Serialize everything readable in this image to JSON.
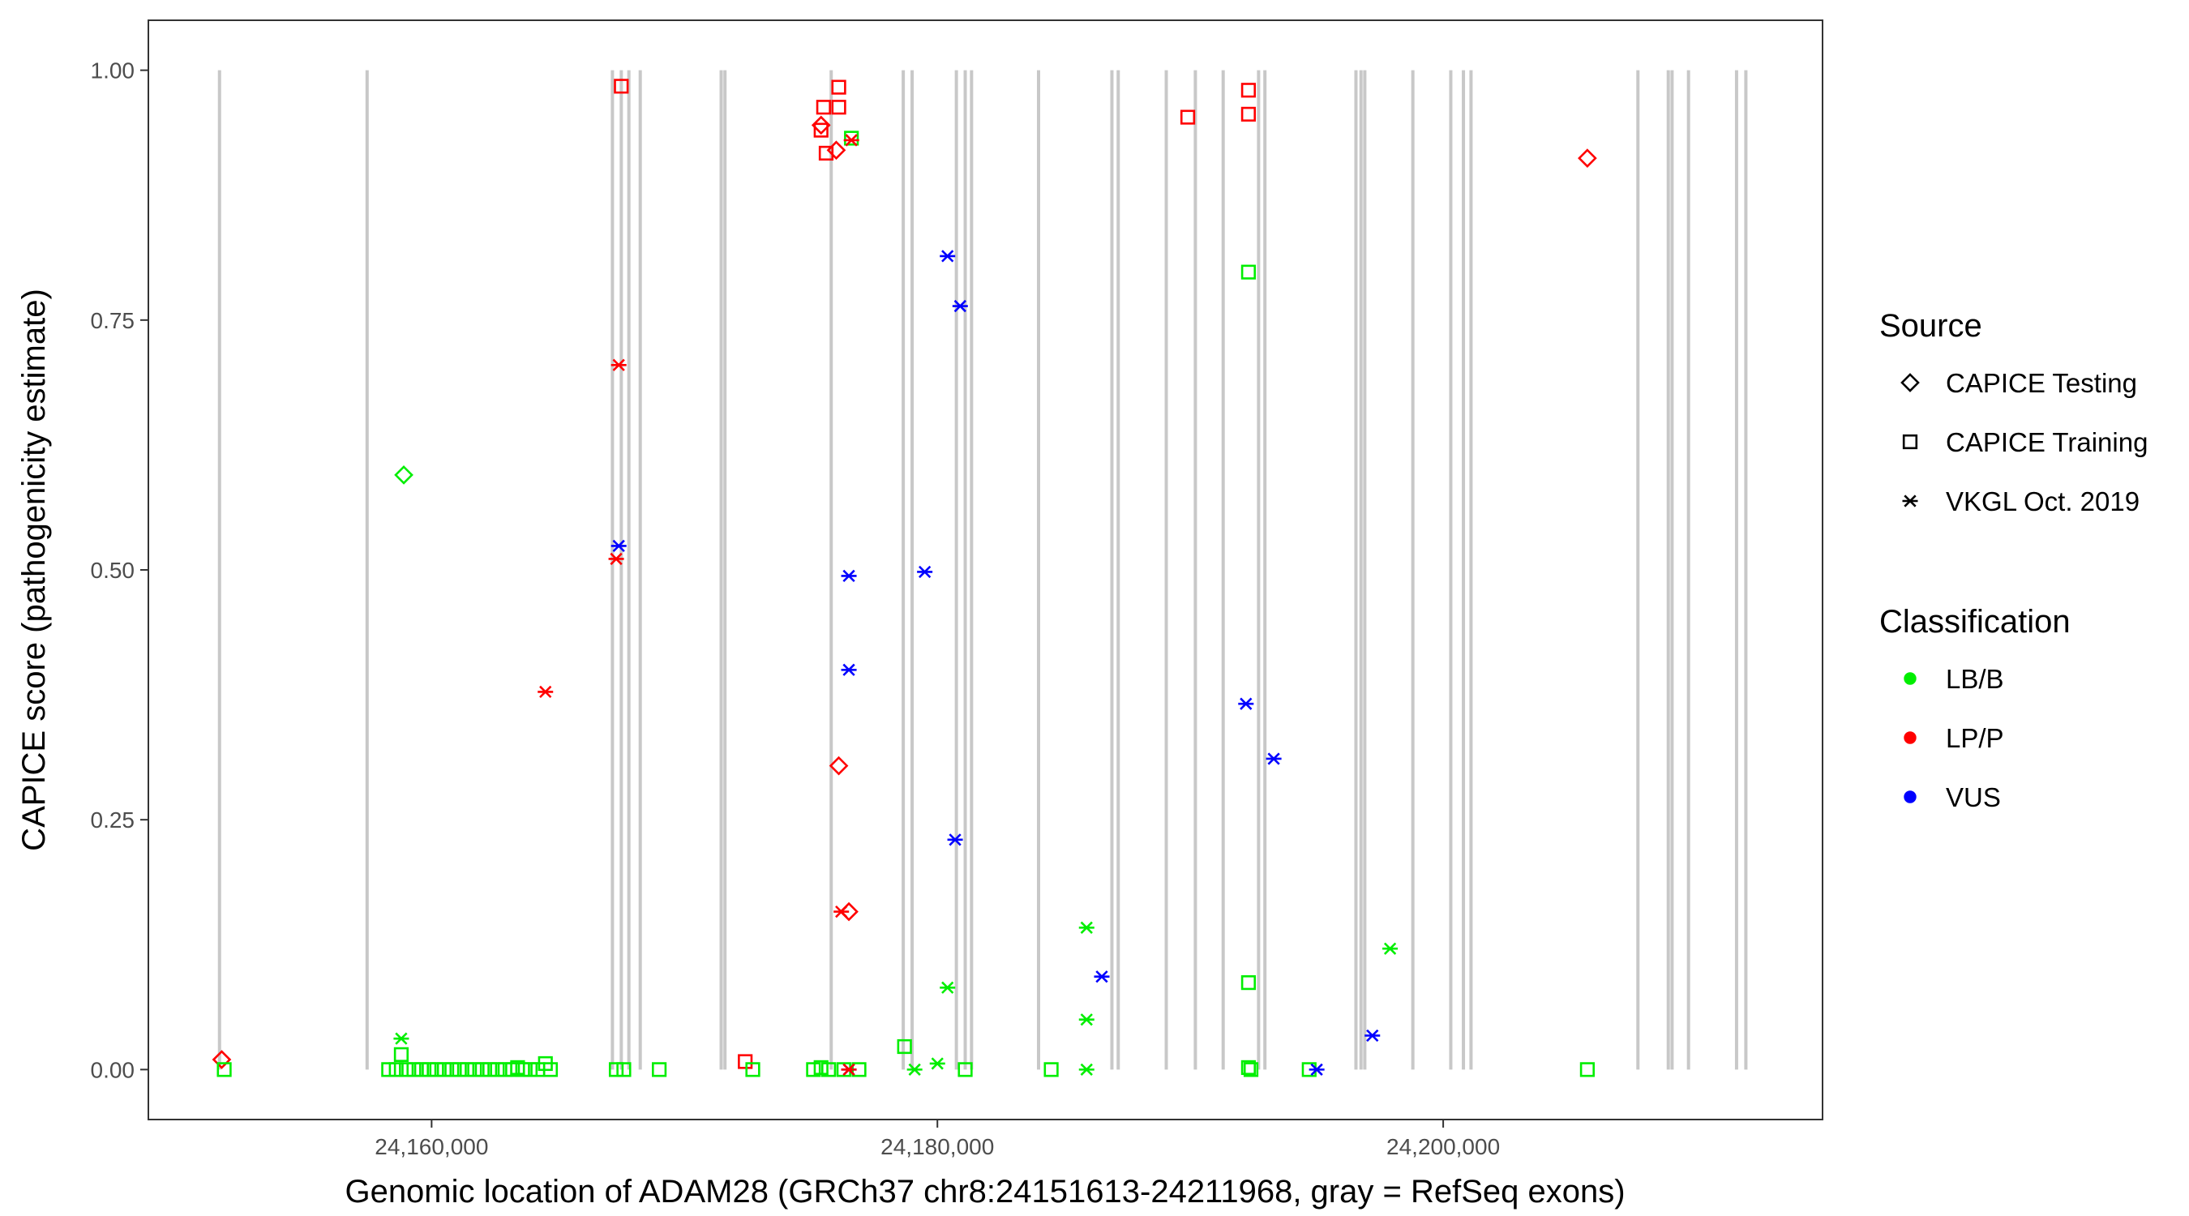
{
  "chart_data": {
    "type": "scatter",
    "xlabel": "Genomic location of ADAM28 (GRCh37 chr8:24151613-24211968, gray = RefSeq exons)",
    "ylabel": "CAPICE score (pathogenicity estimate)",
    "xlim": [
      24148800,
      24215000
    ],
    "ylim": [
      -0.05,
      1.05
    ],
    "xticks": [
      24160000,
      24180000,
      24200000
    ],
    "xtick_labels": [
      "24,160,000",
      "24,180,000",
      "24,200,000"
    ],
    "yticks": [
      0.0,
      0.25,
      0.5,
      0.75,
      1.0
    ],
    "ytick_labels": [
      "0.00",
      "0.25",
      "0.50",
      "0.75",
      "1.00"
    ],
    "grid": false,
    "legend_position": "right",
    "exons": [
      24151613,
      24157450,
      24167150,
      24167500,
      24167800,
      24168250,
      24171450,
      24171600,
      24175800,
      24178650,
      24179000,
      24180750,
      24181100,
      24181350,
      24184000,
      24186900,
      24187150,
      24189050,
      24190200,
      24191300,
      24192700,
      24192950,
      24196550,
      24196750,
      24196900,
      24198800,
      24200300,
      24200800,
      24201100,
      24207700,
      24208900,
      24209050,
      24209700,
      24211600,
      24211968
    ],
    "legends": [
      {
        "title": "Source",
        "entries": [
          {
            "label": "CAPICE Testing",
            "shape": "diamond"
          },
          {
            "label": "CAPICE Training",
            "shape": "square"
          },
          {
            "label": "VKGL Oct. 2019",
            "shape": "asterisk"
          }
        ]
      },
      {
        "title": "Classification",
        "entries": [
          {
            "label": "LB/B",
            "color": "#00ee00"
          },
          {
            "label": "LP/P",
            "color": "#ff0000"
          },
          {
            "label": "VUS",
            "color": "#0000ff"
          }
        ]
      }
    ],
    "colors": {
      "LB/B": "#00ee00",
      "LP/P": "#ff0000",
      "VUS": "#0000ff"
    },
    "series": [
      {
        "source": "CAPICE Testing",
        "points": [
          {
            "x": 24151700,
            "y": 0.01,
            "class": "LP/P"
          },
          {
            "x": 24158900,
            "y": 0.595,
            "class": "LB/B"
          },
          {
            "x": 24175400,
            "y": 0.945,
            "class": "LP/P"
          },
          {
            "x": 24176000,
            "y": 0.92,
            "class": "LP/P"
          },
          {
            "x": 24176100,
            "y": 0.304,
            "class": "LP/P"
          },
          {
            "x": 24176500,
            "y": 0.158,
            "class": "LP/P"
          },
          {
            "x": 24205700,
            "y": 0.912,
            "class": "LP/P"
          }
        ]
      },
      {
        "source": "CAPICE Training",
        "points": [
          {
            "x": 24151800,
            "y": 0.0,
            "class": "LB/B"
          },
          {
            "x": 24158300,
            "y": 0.0,
            "class": "LB/B"
          },
          {
            "x": 24158600,
            "y": 0.0,
            "class": "LB/B"
          },
          {
            "x": 24158800,
            "y": 0.015,
            "class": "LB/B"
          },
          {
            "x": 24159000,
            "y": 0.0,
            "class": "LB/B"
          },
          {
            "x": 24159300,
            "y": 0.0,
            "class": "LB/B"
          },
          {
            "x": 24159600,
            "y": 0.0,
            "class": "LB/B"
          },
          {
            "x": 24159900,
            "y": 0.0,
            "class": "LB/B"
          },
          {
            "x": 24160200,
            "y": 0.0,
            "class": "LB/B"
          },
          {
            "x": 24160500,
            "y": 0.0,
            "class": "LB/B"
          },
          {
            "x": 24160800,
            "y": 0.0,
            "class": "LB/B"
          },
          {
            "x": 24161100,
            "y": 0.0,
            "class": "LB/B"
          },
          {
            "x": 24161400,
            "y": 0.0,
            "class": "LB/B"
          },
          {
            "x": 24161700,
            "y": 0.0,
            "class": "LB/B"
          },
          {
            "x": 24162000,
            "y": 0.0,
            "class": "LB/B"
          },
          {
            "x": 24162300,
            "y": 0.0,
            "class": "LB/B"
          },
          {
            "x": 24162600,
            "y": 0.0,
            "class": "LB/B"
          },
          {
            "x": 24162900,
            "y": 0.0,
            "class": "LB/B"
          },
          {
            "x": 24163200,
            "y": 0.0,
            "class": "LB/B"
          },
          {
            "x": 24163400,
            "y": 0.002,
            "class": "LB/B"
          },
          {
            "x": 24163600,
            "y": 0.0,
            "class": "LB/B"
          },
          {
            "x": 24163900,
            "y": 0.0,
            "class": "LB/B"
          },
          {
            "x": 24164200,
            "y": 0.0,
            "class": "LB/B"
          },
          {
            "x": 24164500,
            "y": 0.006,
            "class": "LB/B"
          },
          {
            "x": 24164700,
            "y": 0.0,
            "class": "LB/B"
          },
          {
            "x": 24167300,
            "y": 0.0,
            "class": "LB/B"
          },
          {
            "x": 24167500,
            "y": 0.984,
            "class": "LP/P"
          },
          {
            "x": 24167600,
            "y": 0.0,
            "class": "LB/B"
          },
          {
            "x": 24169000,
            "y": 0.0,
            "class": "LB/B"
          },
          {
            "x": 24172400,
            "y": 0.008,
            "class": "LP/P"
          },
          {
            "x": 24172700,
            "y": 0.0,
            "class": "LB/B"
          },
          {
            "x": 24175100,
            "y": 0.0,
            "class": "LB/B"
          },
          {
            "x": 24175400,
            "y": 0.002,
            "class": "LB/B"
          },
          {
            "x": 24175400,
            "y": 0.94,
            "class": "LP/P"
          },
          {
            "x": 24175500,
            "y": 0.963,
            "class": "LP/P"
          },
          {
            "x": 24175600,
            "y": 0.917,
            "class": "LP/P"
          },
          {
            "x": 24175700,
            "y": 0.0,
            "class": "LB/B"
          },
          {
            "x": 24176100,
            "y": 0.983,
            "class": "LP/P"
          },
          {
            "x": 24176100,
            "y": 0.963,
            "class": "LP/P"
          },
          {
            "x": 24176300,
            "y": 0.0,
            "class": "LB/B"
          },
          {
            "x": 24176600,
            "y": 0.932,
            "class": "LB/B"
          },
          {
            "x": 24176900,
            "y": 0.0,
            "class": "LB/B"
          },
          {
            "x": 24178700,
            "y": 0.023,
            "class": "LB/B"
          },
          {
            "x": 24181100,
            "y": 0.0,
            "class": "LB/B"
          },
          {
            "x": 24184500,
            "y": 0.0,
            "class": "LB/B"
          },
          {
            "x": 24189900,
            "y": 0.953,
            "class": "LP/P"
          },
          {
            "x": 24192300,
            "y": 0.98,
            "class": "LP/P"
          },
          {
            "x": 24192300,
            "y": 0.956,
            "class": "LP/P"
          },
          {
            "x": 24192300,
            "y": 0.798,
            "class": "LB/B"
          },
          {
            "x": 24192300,
            "y": 0.087,
            "class": "LB/B"
          },
          {
            "x": 24192300,
            "y": 0.002,
            "class": "LB/B"
          },
          {
            "x": 24192400,
            "y": 0.0,
            "class": "LB/B"
          },
          {
            "x": 24194700,
            "y": 0.0,
            "class": "LB/B"
          },
          {
            "x": 24205700,
            "y": 0.0,
            "class": "LB/B"
          }
        ]
      },
      {
        "source": "VKGL Oct. 2019",
        "points": [
          {
            "x": 24158800,
            "y": 0.031,
            "class": "LB/B"
          },
          {
            "x": 24164500,
            "y": 0.378,
            "class": "LP/P"
          },
          {
            "x": 24167400,
            "y": 0.705,
            "class": "LP/P"
          },
          {
            "x": 24167400,
            "y": 0.524,
            "class": "VUS"
          },
          {
            "x": 24167300,
            "y": 0.511,
            "class": "LP/P"
          },
          {
            "x": 24176600,
            "y": 0.93,
            "class": "LP/P"
          },
          {
            "x": 24176500,
            "y": 0.494,
            "class": "VUS"
          },
          {
            "x": 24176500,
            "y": 0.4,
            "class": "VUS"
          },
          {
            "x": 24176200,
            "y": 0.158,
            "class": "LP/P"
          },
          {
            "x": 24176500,
            "y": 0.0,
            "class": "VUS"
          },
          {
            "x": 24176500,
            "y": 0.0,
            "class": "LP/P"
          },
          {
            "x": 24179100,
            "y": 0.0,
            "class": "LB/B"
          },
          {
            "x": 24179500,
            "y": 0.498,
            "class": "VUS"
          },
          {
            "x": 24180000,
            "y": 0.006,
            "class": "LB/B"
          },
          {
            "x": 24180400,
            "y": 0.814,
            "class": "VUS"
          },
          {
            "x": 24180400,
            "y": 0.082,
            "class": "LB/B"
          },
          {
            "x": 24180700,
            "y": 0.23,
            "class": "VUS"
          },
          {
            "x": 24180900,
            "y": 0.764,
            "class": "VUS"
          },
          {
            "x": 24185900,
            "y": 0.142,
            "class": "LB/B"
          },
          {
            "x": 24185900,
            "y": 0.05,
            "class": "LB/B"
          },
          {
            "x": 24185900,
            "y": 0.0,
            "class": "LB/B"
          },
          {
            "x": 24186500,
            "y": 0.093,
            "class": "VUS"
          },
          {
            "x": 24192200,
            "y": 0.366,
            "class": "VUS"
          },
          {
            "x": 24193300,
            "y": 0.311,
            "class": "VUS"
          },
          {
            "x": 24195000,
            "y": 0.0,
            "class": "VUS"
          },
          {
            "x": 24197200,
            "y": 0.034,
            "class": "VUS"
          },
          {
            "x": 24197900,
            "y": 0.121,
            "class": "LB/B"
          }
        ]
      }
    ]
  }
}
